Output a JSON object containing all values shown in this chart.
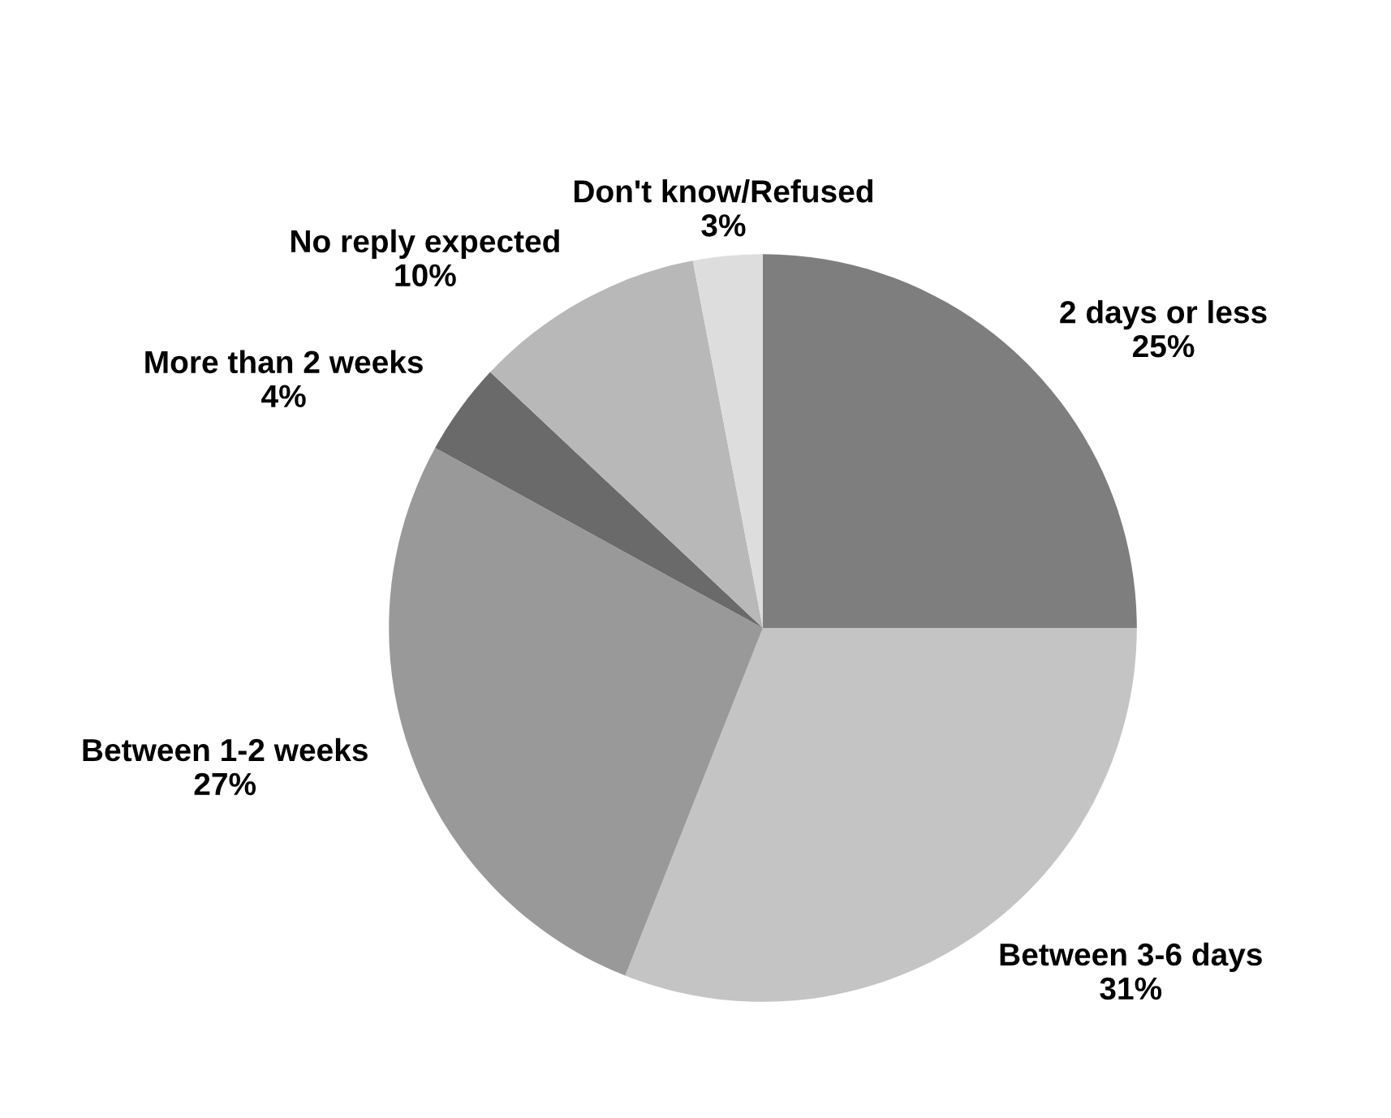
{
  "chart_data": {
    "type": "pie",
    "categories": [
      "2 days or less",
      "Between 3-6 days",
      "Between 1-2 weeks",
      "More than 2 weeks",
      "No reply expected",
      "Don't know/Refused"
    ],
    "values": [
      25,
      31,
      27,
      4,
      10,
      3
    ],
    "value_labels": [
      "25%",
      "31%",
      "27%",
      "4%",
      "10%",
      "3%"
    ],
    "colors": [
      "#7e7e7e",
      "#c4c4c4",
      "#999999",
      "#6a6a6a",
      "#b8b8b8",
      "#dddddd"
    ]
  }
}
